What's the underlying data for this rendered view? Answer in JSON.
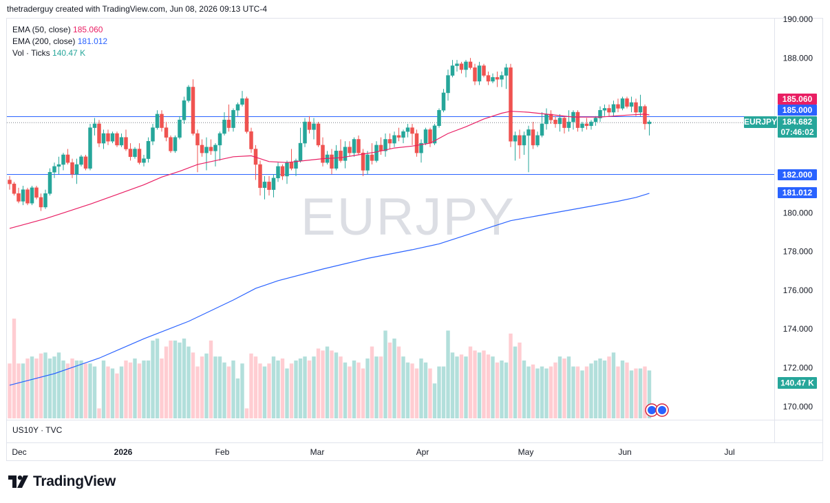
{
  "header": {
    "attribution": "thetraderguy created with TradingView.com, Jun 08, 2026 09:13 UTC-4"
  },
  "legend": {
    "ema50_label": "EMA (50, close)",
    "ema50_value": "185.060",
    "ema200_label": "EMA (200, close)",
    "ema200_value": "181.012",
    "vol_label": "Vol · Ticks",
    "vol_value": "140.47 K"
  },
  "watermark": "EURJPY",
  "lower_pane_label": "US10Y · TVC",
  "brand": "TradingView",
  "colors": {
    "up": "#26a69a",
    "down": "#ef5350",
    "ema50": "#e91e63",
    "ema200": "#2962ff",
    "hline": "#2962ff",
    "vol_up": "#b2dfdb",
    "vol_down": "#ffcdd2"
  },
  "chart_data": {
    "type": "candlestick",
    "symbol": "EURJPY",
    "ylim": [
      169.3,
      190.3
    ],
    "y_ticks": [
      "170.000",
      "172.000",
      "174.000",
      "176.000",
      "178.000",
      "180.000",
      "188.000",
      "190.000"
    ],
    "x_ticks": [
      "Dec",
      "2026",
      "Feb",
      "Mar",
      "Apr",
      "May",
      "Jun",
      "Jul"
    ],
    "horizontal_lines": [
      185.0,
      182.0
    ],
    "price_labels": {
      "ema50": "185.060",
      "level_high": "185.000",
      "symbol": "EURJPY",
      "last": "184.682",
      "countdown": "07:46:02",
      "level_low": "182.000",
      "ema200": "181.012",
      "volume": "140.47 K"
    },
    "ohlc": [
      [
        181.7,
        181.9,
        181.2,
        181.5
      ],
      [
        181.5,
        181.6,
        180.9,
        181.0
      ],
      [
        181.0,
        181.3,
        180.5,
        180.6
      ],
      [
        180.6,
        181.4,
        180.4,
        181.2
      ],
      [
        181.2,
        181.3,
        180.4,
        180.5
      ],
      [
        180.5,
        181.4,
        180.4,
        181.3
      ],
      [
        181.3,
        181.4,
        180.7,
        180.8
      ],
      [
        180.8,
        181.0,
        180.1,
        180.3
      ],
      [
        180.3,
        181.2,
        180.2,
        181.0
      ],
      [
        181.0,
        182.3,
        180.9,
        182.1
      ],
      [
        182.1,
        182.6,
        181.8,
        182.4
      ],
      [
        182.4,
        182.9,
        182.0,
        182.5
      ],
      [
        182.5,
        183.1,
        182.2,
        183.0
      ],
      [
        183.0,
        183.3,
        182.5,
        182.6
      ],
      [
        182.6,
        182.8,
        181.8,
        182.0
      ],
      [
        182.0,
        182.8,
        181.5,
        182.5
      ],
      [
        182.5,
        183.0,
        182.4,
        182.9
      ],
      [
        182.9,
        183.0,
        182.2,
        182.3
      ],
      [
        182.3,
        184.6,
        182.2,
        184.4
      ],
      [
        184.4,
        184.9,
        184.0,
        184.6
      ],
      [
        184.6,
        184.8,
        183.4,
        183.6
      ],
      [
        183.6,
        184.3,
        183.3,
        184.1
      ],
      [
        184.1,
        184.3,
        183.5,
        183.7
      ],
      [
        183.7,
        184.2,
        183.6,
        184.1
      ],
      [
        184.1,
        184.2,
        183.4,
        183.5
      ],
      [
        183.5,
        184.1,
        183.4,
        183.9
      ],
      [
        183.9,
        184.3,
        183.2,
        183.3
      ],
      [
        183.3,
        183.6,
        182.7,
        182.9
      ],
      [
        182.9,
        183.4,
        182.8,
        183.3
      ],
      [
        183.3,
        183.6,
        182.5,
        182.6
      ],
      [
        182.6,
        183.0,
        182.4,
        182.8
      ],
      [
        182.8,
        183.9,
        182.6,
        183.7
      ],
      [
        183.7,
        184.6,
        183.5,
        184.4
      ],
      [
        184.4,
        185.3,
        184.3,
        185.1
      ],
      [
        185.1,
        185.3,
        184.2,
        184.4
      ],
      [
        184.4,
        184.7,
        183.7,
        183.9
      ],
      [
        183.9,
        184.0,
        183.1,
        183.2
      ],
      [
        183.2,
        184.0,
        183.1,
        183.9
      ],
      [
        183.9,
        185.0,
        183.8,
        184.8
      ],
      [
        184.8,
        186.0,
        184.6,
        185.8
      ],
      [
        185.8,
        186.6,
        185.7,
        186.5
      ],
      [
        186.5,
        186.9,
        184.0,
        184.1
      ],
      [
        184.1,
        184.3,
        182.1,
        183.5
      ],
      [
        183.5,
        183.8,
        182.9,
        183.1
      ],
      [
        183.1,
        183.9,
        182.2,
        183.4
      ],
      [
        183.4,
        183.8,
        183.0,
        183.2
      ],
      [
        183.2,
        183.6,
        182.4,
        183.5
      ],
      [
        183.5,
        184.2,
        182.7,
        184.1
      ],
      [
        184.1,
        185.2,
        184.0,
        184.8
      ],
      [
        184.8,
        185.6,
        184.2,
        184.4
      ],
      [
        184.4,
        185.4,
        184.2,
        185.3
      ],
      [
        185.3,
        185.7,
        185.0,
        185.6
      ],
      [
        185.6,
        186.3,
        185.5,
        185.9
      ],
      [
        185.9,
        186.0,
        184.1,
        184.2
      ],
      [
        184.2,
        184.4,
        183.1,
        183.3
      ],
      [
        183.3,
        183.5,
        181.7,
        182.5
      ],
      [
        182.5,
        182.7,
        180.9,
        181.3
      ],
      [
        181.3,
        181.9,
        180.7,
        181.6
      ],
      [
        181.6,
        181.9,
        180.9,
        181.2
      ],
      [
        181.2,
        182.0,
        180.8,
        181.8
      ],
      [
        181.8,
        182.6,
        181.6,
        182.4
      ],
      [
        182.4,
        182.5,
        181.7,
        181.9
      ],
      [
        181.9,
        182.7,
        181.5,
        182.6
      ],
      [
        182.6,
        183.3,
        182.2,
        182.3
      ],
      [
        182.3,
        182.8,
        181.9,
        182.7
      ],
      [
        182.7,
        184.4,
        182.6,
        183.6
      ],
      [
        183.6,
        184.9,
        183.4,
        184.7
      ],
      [
        184.7,
        185.0,
        184.1,
        184.3
      ],
      [
        184.3,
        184.9,
        183.8,
        184.6
      ],
      [
        184.6,
        184.7,
        183.4,
        183.5
      ],
      [
        183.5,
        183.9,
        182.4,
        182.6
      ],
      [
        182.6,
        183.2,
        182.5,
        183.0
      ],
      [
        183.0,
        183.3,
        182.0,
        182.3
      ],
      [
        182.3,
        183.5,
        182.2,
        183.2
      ],
      [
        183.2,
        183.8,
        182.6,
        182.7
      ],
      [
        182.7,
        183.7,
        182.3,
        183.4
      ],
      [
        183.4,
        183.7,
        182.9,
        183.1
      ],
      [
        183.1,
        183.9,
        182.9,
        183.8
      ],
      [
        183.8,
        184.0,
        183.0,
        183.1
      ],
      [
        183.1,
        183.3,
        181.9,
        182.2
      ],
      [
        182.2,
        183.2,
        182.0,
        183.0
      ],
      [
        183.0,
        183.6,
        182.5,
        182.7
      ],
      [
        182.7,
        183.7,
        182.6,
        183.5
      ],
      [
        183.5,
        183.9,
        183.0,
        183.2
      ],
      [
        183.2,
        184.1,
        182.9,
        183.8
      ],
      [
        183.8,
        184.1,
        183.3,
        183.6
      ],
      [
        183.6,
        184.2,
        183.4,
        184.0
      ],
      [
        184.0,
        184.4,
        183.7,
        183.9
      ],
      [
        183.9,
        184.3,
        183.6,
        184.2
      ],
      [
        184.2,
        184.6,
        183.9,
        184.4
      ],
      [
        184.4,
        184.6,
        183.5,
        184.1
      ],
      [
        184.1,
        184.3,
        182.9,
        183.1
      ],
      [
        183.1,
        183.8,
        182.6,
        183.6
      ],
      [
        183.6,
        184.4,
        183.5,
        184.3
      ],
      [
        184.3,
        184.4,
        183.4,
        183.6
      ],
      [
        183.6,
        184.6,
        183.5,
        184.5
      ],
      [
        184.5,
        185.4,
        184.4,
        185.3
      ],
      [
        185.3,
        186.4,
        185.2,
        186.2
      ],
      [
        186.2,
        187.4,
        185.8,
        187.1
      ],
      [
        187.1,
        187.9,
        187.0,
        187.6
      ],
      [
        187.6,
        187.9,
        187.3,
        187.7
      ],
      [
        187.7,
        187.8,
        187.2,
        187.4
      ],
      [
        187.4,
        187.9,
        187.0,
        187.8
      ],
      [
        187.8,
        188.0,
        187.4,
        187.5
      ],
      [
        187.5,
        187.7,
        186.6,
        186.8
      ],
      [
        186.8,
        187.8,
        186.6,
        187.6
      ],
      [
        187.6,
        187.7,
        187.0,
        187.1
      ],
      [
        187.1,
        187.3,
        186.6,
        186.8
      ],
      [
        186.8,
        187.2,
        186.7,
        187.0
      ],
      [
        187.0,
        187.3,
        186.5,
        186.9
      ],
      [
        186.9,
        187.3,
        186.5,
        187.1
      ],
      [
        187.1,
        187.7,
        186.4,
        187.5
      ],
      [
        187.5,
        187.7,
        183.4,
        183.7
      ],
      [
        183.7,
        184.2,
        182.7,
        184.0
      ],
      [
        184.0,
        184.3,
        182.8,
        183.5
      ],
      [
        183.5,
        184.2,
        183.0,
        184.0
      ],
      [
        184.0,
        184.5,
        182.1,
        184.3
      ],
      [
        184.3,
        184.7,
        183.3,
        183.5
      ],
      [
        183.5,
        184.2,
        183.4,
        184.0
      ],
      [
        184.0,
        185.2,
        183.9,
        184.6
      ],
      [
        184.6,
        185.4,
        184.3,
        185.1
      ],
      [
        185.1,
        185.3,
        184.6,
        184.8
      ],
      [
        184.8,
        185.0,
        184.4,
        184.6
      ],
      [
        184.6,
        185.1,
        184.2,
        184.9
      ],
      [
        184.9,
        185.0,
        184.1,
        184.4
      ],
      [
        184.4,
        185.3,
        184.2,
        184.7
      ],
      [
        184.7,
        185.3,
        184.3,
        185.2
      ],
      [
        185.2,
        185.3,
        184.2,
        184.4
      ],
      [
        184.4,
        184.7,
        184.2,
        184.6
      ],
      [
        184.6,
        184.9,
        184.3,
        184.5
      ],
      [
        184.5,
        184.8,
        184.3,
        184.7
      ],
      [
        184.7,
        185.0,
        184.5,
        184.9
      ],
      [
        184.9,
        185.5,
        184.7,
        185.3
      ],
      [
        185.3,
        185.6,
        185.0,
        185.4
      ],
      [
        185.4,
        185.6,
        185.0,
        185.2
      ],
      [
        185.2,
        185.8,
        185.0,
        185.6
      ],
      [
        185.6,
        185.9,
        185.2,
        185.4
      ],
      [
        185.4,
        186.0,
        185.3,
        185.9
      ],
      [
        185.9,
        186.0,
        185.4,
        185.5
      ],
      [
        185.5,
        186.0,
        185.2,
        185.7
      ],
      [
        185.7,
        185.9,
        185.0,
        185.2
      ],
      [
        185.2,
        186.1,
        185.0,
        185.5
      ],
      [
        185.5,
        185.6,
        184.3,
        184.6
      ],
      [
        184.6,
        184.8,
        184.0,
        184.7
      ]
    ],
    "ema50": [
      [
        0,
        179.2
      ],
      [
        4,
        179.45
      ],
      [
        8,
        179.7
      ],
      [
        12,
        180.0
      ],
      [
        18,
        180.45
      ],
      [
        24,
        180.95
      ],
      [
        30,
        181.45
      ],
      [
        34,
        181.85
      ],
      [
        38,
        182.15
      ],
      [
        42,
        182.5
      ],
      [
        46,
        182.7
      ],
      [
        50,
        182.9
      ],
      [
        54,
        182.95
      ],
      [
        58,
        182.65
      ],
      [
        62,
        182.6
      ],
      [
        66,
        182.7
      ],
      [
        70,
        182.8
      ],
      [
        74,
        182.85
      ],
      [
        78,
        183.0
      ],
      [
        82,
        183.15
      ],
      [
        86,
        183.35
      ],
      [
        90,
        183.45
      ],
      [
        94,
        183.6
      ],
      [
        98,
        184.1
      ],
      [
        102,
        184.45
      ],
      [
        106,
        184.85
      ],
      [
        110,
        185.15
      ],
      [
        112,
        185.25
      ],
      [
        116,
        185.2
      ],
      [
        120,
        185.1
      ],
      [
        126,
        184.95
      ],
      [
        132,
        184.95
      ],
      [
        138,
        185.05
      ],
      [
        142,
        185.1
      ],
      [
        143,
        185.06
      ]
    ],
    "ema200": [
      [
        0,
        171.1
      ],
      [
        10,
        171.7
      ],
      [
        20,
        172.5
      ],
      [
        30,
        173.5
      ],
      [
        40,
        174.4
      ],
      [
        50,
        175.5
      ],
      [
        55,
        176.1
      ],
      [
        60,
        176.5
      ],
      [
        70,
        177.1
      ],
      [
        80,
        177.65
      ],
      [
        90,
        178.1
      ],
      [
        96,
        178.4
      ],
      [
        102,
        178.85
      ],
      [
        108,
        179.3
      ],
      [
        112,
        179.6
      ],
      [
        118,
        179.85
      ],
      [
        124,
        180.1
      ],
      [
        130,
        180.35
      ],
      [
        136,
        180.6
      ],
      [
        140,
        180.8
      ],
      [
        143,
        181.012
      ]
    ],
    "volume": [
      0.55,
      1.0,
      0.55,
      0.55,
      0.6,
      0.62,
      0.6,
      0.65,
      0.66,
      0.6,
      0.62,
      0.66,
      0.58,
      0.55,
      0.6,
      0.58,
      0.58,
      0.55,
      0.55,
      0.52,
      0.1,
      0.58,
      0.52,
      0.5,
      0.45,
      0.52,
      0.58,
      0.56,
      0.6,
      0.55,
      0.58,
      0.58,
      0.78,
      0.8,
      0.6,
      0.72,
      0.78,
      0.78,
      0.76,
      0.8,
      0.72,
      0.66,
      0.52,
      0.62,
      0.65,
      0.78,
      0.62,
      0.62,
      0.56,
      0.52,
      0.58,
      0.4,
      0.55,
      0.1,
      0.65,
      0.62,
      0.55,
      0.52,
      0.55,
      0.62,
      0.58,
      0.6,
      0.5,
      0.55,
      0.58,
      0.6,
      0.62,
      0.58,
      0.62,
      0.7,
      0.68,
      0.72,
      0.68,
      0.66,
      0.62,
      0.56,
      0.52,
      0.58,
      0.56,
      0.5,
      0.6,
      0.72,
      0.62,
      0.62,
      0.88,
      0.76,
      0.8,
      0.72,
      0.62,
      0.56,
      0.55,
      0.5,
      0.6,
      0.56,
      0.5,
      0.35,
      0.52,
      0.52,
      0.88,
      0.66,
      0.62,
      0.64,
      0.62,
      0.72,
      0.68,
      0.66,
      0.68,
      0.64,
      0.62,
      0.56,
      0.58,
      0.56,
      0.85,
      0.72,
      0.76,
      0.58,
      0.52,
      0.54,
      0.5,
      0.52,
      0.5,
      0.52,
      0.56,
      0.62,
      0.6,
      0.62,
      0.52,
      0.52,
      0.48,
      0.52,
      0.55,
      0.58,
      0.6,
      0.58,
      0.62,
      0.66,
      0.52,
      0.58,
      0.56,
      0.48,
      0.5,
      0.5,
      0.52,
      0.48
    ]
  }
}
